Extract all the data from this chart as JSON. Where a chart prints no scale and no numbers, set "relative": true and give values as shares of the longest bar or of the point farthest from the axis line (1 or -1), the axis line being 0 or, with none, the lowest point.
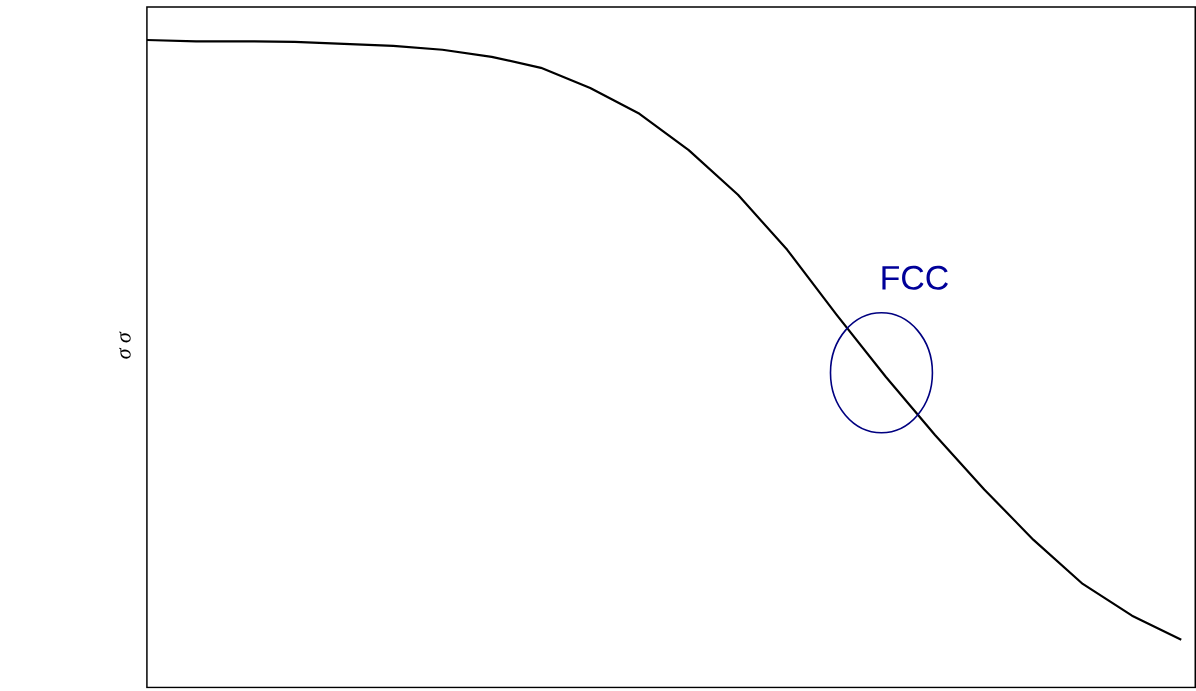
{
  "chart_data": {
    "type": "line",
    "relative": true,
    "ylabel": "σ σ",
    "color": "#000000",
    "categories": [
      null,
      null,
      null,
      null,
      null,
      null,
      null,
      null,
      null,
      null,
      null,
      null,
      null,
      null,
      null,
      null,
      null,
      null,
      null,
      null,
      null,
      null
    ],
    "values": [
      1.0,
      0.998,
      0.998,
      0.997,
      0.994,
      0.991,
      0.985,
      0.974,
      0.957,
      0.926,
      0.886,
      0.83,
      0.761,
      0.676,
      0.576,
      0.48,
      0.39,
      0.306,
      0.228,
      0.16,
      0.111,
      0.074
    ],
    "annotations": [
      "FCC"
    ]
  }
}
